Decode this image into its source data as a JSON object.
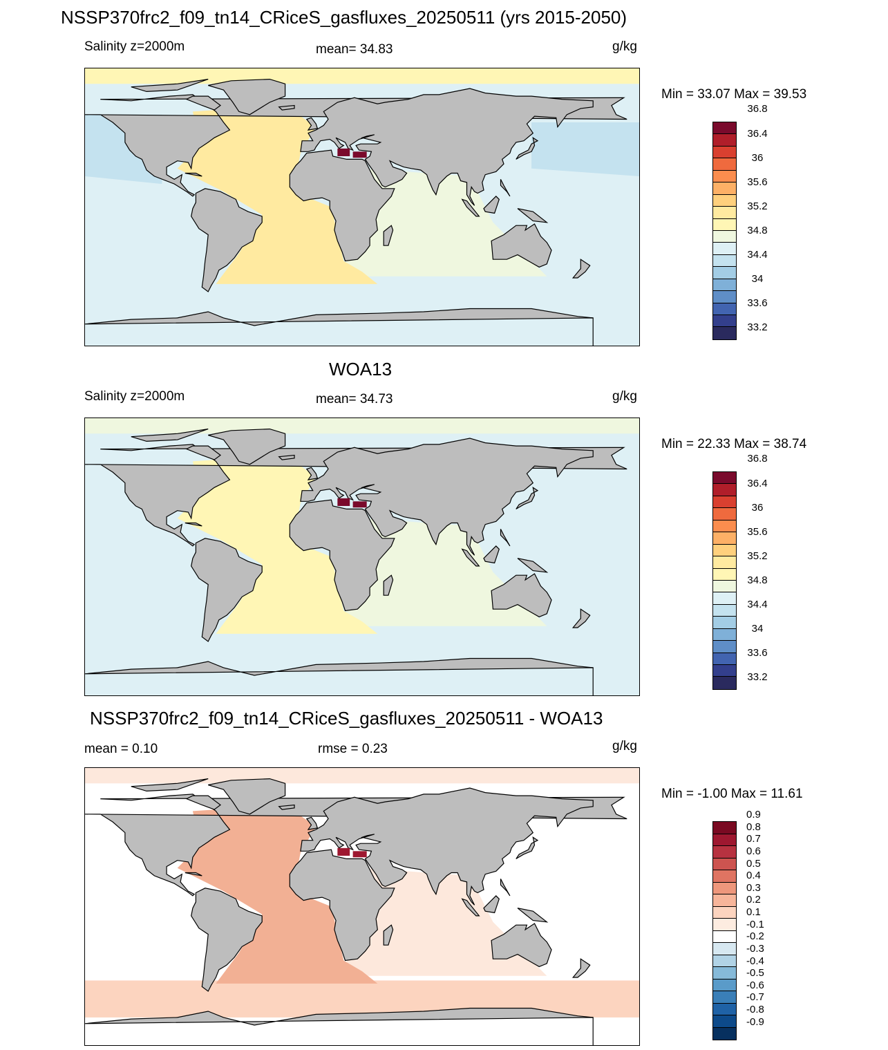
{
  "main_title": "NSSP370frc2_f09_tn14_CRiceS_gasfluxes_20250511 (yrs 2015-2050)",
  "panels": [
    {
      "title": "",
      "left_label": "Salinity z=2000m",
      "center_label": "mean=  34.83",
      "units": "g/kg",
      "minmax": "Min =  33.07 Max =  39.53",
      "colorbar": {
        "colors": [
          "#2a2a5e",
          "#333f8c",
          "#4264b0",
          "#5f8ec7",
          "#7fb0d8",
          "#a3cde5",
          "#c4e2ef",
          "#def0f5",
          "#eff7df",
          "#fff6b5",
          "#ffeaa0",
          "#ffd07d",
          "#fdb066",
          "#fb8d4e",
          "#ef6a3e",
          "#d94030",
          "#b01e2a",
          "#7a0a2c"
        ],
        "ticks": [
          "33.2",
          "33.6",
          "34",
          "34.4",
          "34.8",
          "35.2",
          "35.6",
          "36",
          "36.4",
          "36.8"
        ]
      },
      "map_colors": {
        "land": "#bdbdbd",
        "ocean_base": "#def0f5",
        "north_pacific": "#c4e2ef",
        "atlantic": "#ffeaa0",
        "indian": "#eff7df",
        "southern": "#def0f5",
        "arctic": "#fff6b5",
        "mediterranean": "#7a0a2c"
      }
    },
    {
      "title": "WOA13",
      "left_label": "Salinity z=2000m",
      "center_label": "mean=  34.73",
      "units": "g/kg",
      "minmax": "Min =  22.33 Max =  38.74",
      "colorbar": {
        "colors": [
          "#2a2a5e",
          "#333f8c",
          "#4264b0",
          "#5f8ec7",
          "#7fb0d8",
          "#a3cde5",
          "#c4e2ef",
          "#def0f5",
          "#eff7df",
          "#fff6b5",
          "#ffeaa0",
          "#ffd07d",
          "#fdb066",
          "#fb8d4e",
          "#ef6a3e",
          "#d94030",
          "#b01e2a",
          "#7a0a2c"
        ],
        "ticks": [
          "33.2",
          "33.6",
          "34",
          "34.4",
          "34.8",
          "35.2",
          "35.6",
          "36",
          "36.4",
          "36.8"
        ]
      },
      "map_colors": {
        "land": "#bdbdbd",
        "ocean_base": "#def0f5",
        "north_pacific": "#def0f5",
        "atlantic": "#fff6b5",
        "indian": "#eff7df",
        "southern": "#def0f5",
        "arctic": "#eff7df",
        "mediterranean": "#7a0a2c"
      }
    },
    {
      "title": "NSSP370frc2_f09_tn14_CRiceS_gasfluxes_20250511 - WOA13",
      "left_label": "mean =   0.10",
      "center_label": "rmse =   0.23",
      "units": "g/kg",
      "minmax": "Min =  -1.00 Max =  11.61",
      "colorbar": {
        "colors": [
          "#07305f",
          "#0d4a8a",
          "#1f62a6",
          "#3a7fb8",
          "#5a9bc9",
          "#86bad9",
          "#b1d3e6",
          "#d7e8f1",
          "#ffffff",
          "#fdece0",
          "#fcd4bf",
          "#f7b59a",
          "#ee977c",
          "#df7462",
          "#cd5450",
          "#b73240",
          "#9e1830",
          "#7a0a22"
        ],
        "ticks": [
          "-0.9",
          "-0.8",
          "-0.7",
          "-0.6",
          "-0.5",
          "-0.4",
          "-0.3",
          "-0.2",
          "-0.1",
          "0.1",
          "0.2",
          "0.3",
          "0.4",
          "0.5",
          "0.6",
          "0.7",
          "0.8",
          "0.9"
        ]
      },
      "map_colors": {
        "land": "#bdbdbd",
        "ocean_base": "#ffffff",
        "north_pacific": "#ffffff",
        "atlantic": "#f2b094",
        "indian": "#fde8dc",
        "southern": "#fcd4bf",
        "arctic": "#fde8dc",
        "mediterranean": "#9e1830"
      }
    }
  ]
}
